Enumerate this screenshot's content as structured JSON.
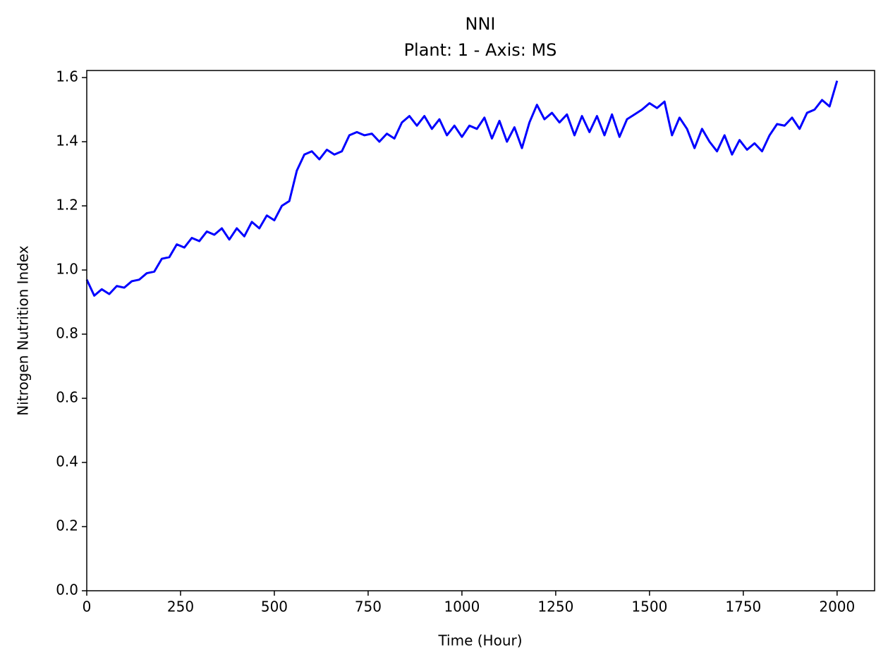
{
  "chart_data": {
    "type": "line",
    "title": "NNI",
    "subtitle": "Plant: 1 - Axis: MS",
    "x_label": "Time (Hour)",
    "y_label": "Nitrogen Nutrition Index",
    "xlim": [
      0,
      2100
    ],
    "ylim": [
      0,
      1.622
    ],
    "xticks": [
      0,
      250,
      500,
      750,
      1000,
      1250,
      1500,
      1750,
      2000
    ],
    "yticks": [
      {
        "value": 0,
        "label": "0.0"
      },
      0.2,
      0.4,
      0.6,
      0.8,
      {
        "value": 1,
        "label": "1.0"
      },
      1.2,
      1.4,
      1.6
    ],
    "x": [
      0,
      20,
      40,
      60,
      80,
      100,
      120,
      140,
      160,
      180,
      200,
      220,
      240,
      260,
      280,
      300,
      320,
      340,
      360,
      380,
      400,
      420,
      440,
      460,
      480,
      500,
      520,
      540,
      560,
      580,
      600,
      620,
      640,
      660,
      680,
      700,
      720,
      740,
      760,
      780,
      800,
      820,
      840,
      860,
      880,
      900,
      920,
      940,
      960,
      980,
      1000,
      1020,
      1040,
      1060,
      1080,
      1100,
      1120,
      1140,
      1160,
      1180,
      1200,
      1220,
      1240,
      1260,
      1280,
      1300,
      1320,
      1340,
      1360,
      1380,
      1400,
      1420,
      1440,
      1460,
      1480,
      1500,
      1520,
      1540,
      1560,
      1580,
      1600,
      1620,
      1640,
      1660,
      1680,
      1700,
      1720,
      1740,
      1760,
      1780,
      1800,
      1820,
      1840,
      1860,
      1880,
      1900,
      1920,
      1940,
      1960,
      1980,
      2000
    ],
    "series": [
      {
        "color": "#0000ff",
        "values": [
          0.97,
          0.92,
          0.94,
          0.925,
          0.95,
          0.945,
          0.965,
          0.97,
          0.99,
          0.995,
          1.035,
          1.04,
          1.08,
          1.07,
          1.1,
          1.09,
          1.12,
          1.11,
          1.13,
          1.095,
          1.13,
          1.105,
          1.15,
          1.13,
          1.17,
          1.155,
          1.2,
          1.215,
          1.31,
          1.36,
          1.37,
          1.345,
          1.375,
          1.36,
          1.37,
          1.42,
          1.43,
          1.42,
          1.425,
          1.4,
          1.425,
          1.41,
          1.46,
          1.48,
          1.45,
          1.48,
          1.44,
          1.47,
          1.42,
          1.45,
          1.415,
          1.45,
          1.44,
          1.475,
          1.41,
          1.465,
          1.4,
          1.445,
          1.38,
          1.46,
          1.515,
          1.47,
          1.49,
          1.46,
          1.485,
          1.42,
          1.48,
          1.43,
          1.48,
          1.42,
          1.485,
          1.415,
          1.47,
          1.485,
          1.5,
          1.52,
          1.505,
          1.525,
          1.42,
          1.475,
          1.44,
          1.38,
          1.44,
          1.4,
          1.37,
          1.42,
          1.36,
          1.405,
          1.375,
          1.395,
          1.37,
          1.42,
          1.455,
          1.45,
          1.475,
          1.44,
          1.49,
          1.5,
          1.53,
          1.51,
          1.59
        ]
      }
    ]
  }
}
